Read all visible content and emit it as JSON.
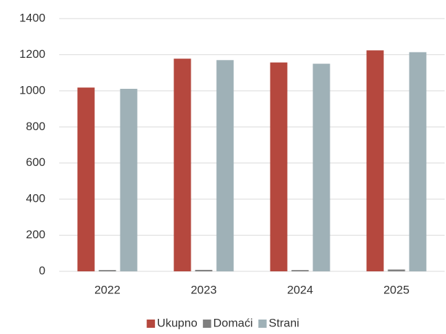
{
  "chart_data": {
    "type": "bar",
    "categories": [
      "2022",
      "2023",
      "2024",
      "2025"
    ],
    "series": [
      {
        "name": "Ukupno",
        "color": "#b5483e",
        "values": [
          1018,
          1178,
          1157,
          1224
        ]
      },
      {
        "name": "Domaći",
        "color": "#7f7f7f",
        "values": [
          7,
          8,
          7,
          10
        ]
      },
      {
        "name": "Strani",
        "color": "#9fb1b7",
        "values": [
          1011,
          1170,
          1150,
          1214
        ]
      }
    ],
    "ylim": [
      0,
      1400
    ],
    "yticks": [
      0,
      200,
      400,
      600,
      800,
      1000,
      1200,
      1400
    ],
    "grid": true,
    "legend": "bottom"
  }
}
